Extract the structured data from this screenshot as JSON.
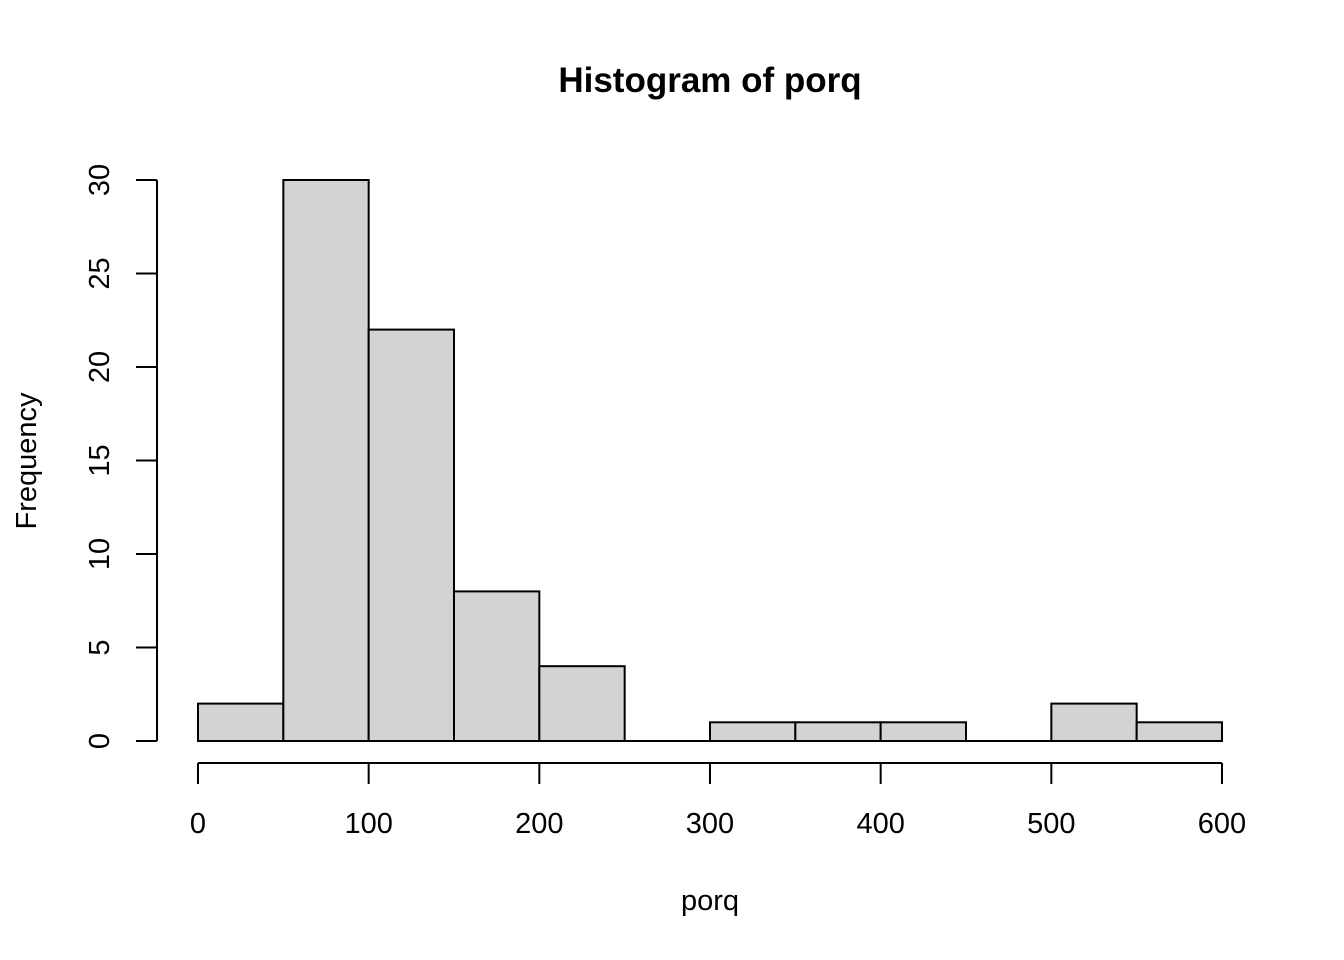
{
  "chart_data": {
    "type": "bar",
    "title": "Histogram of porq",
    "xlabel": "porq",
    "ylabel": "Frequency",
    "bins": [
      {
        "start": 0,
        "end": 50,
        "count": 2
      },
      {
        "start": 50,
        "end": 100,
        "count": 30
      },
      {
        "start": 100,
        "end": 150,
        "count": 22
      },
      {
        "start": 150,
        "end": 200,
        "count": 8
      },
      {
        "start": 200,
        "end": 250,
        "count": 4
      },
      {
        "start": 250,
        "end": 300,
        "count": 0
      },
      {
        "start": 300,
        "end": 350,
        "count": 1
      },
      {
        "start": 350,
        "end": 400,
        "count": 1
      },
      {
        "start": 400,
        "end": 450,
        "count": 1
      },
      {
        "start": 450,
        "end": 500,
        "count": 0
      },
      {
        "start": 500,
        "end": 550,
        "count": 2
      },
      {
        "start": 550,
        "end": 600,
        "count": 1
      }
    ],
    "xlim": [
      0,
      600
    ],
    "ylim": [
      0,
      30
    ],
    "xticks": [
      "0",
      "100",
      "200",
      "300",
      "400",
      "500",
      "600"
    ],
    "yticks": [
      "0",
      "5",
      "10",
      "15",
      "20",
      "25",
      "30"
    ],
    "colors": {
      "bar_fill": "#d3d3d3",
      "bar_stroke": "#000000"
    },
    "grid": false
  }
}
